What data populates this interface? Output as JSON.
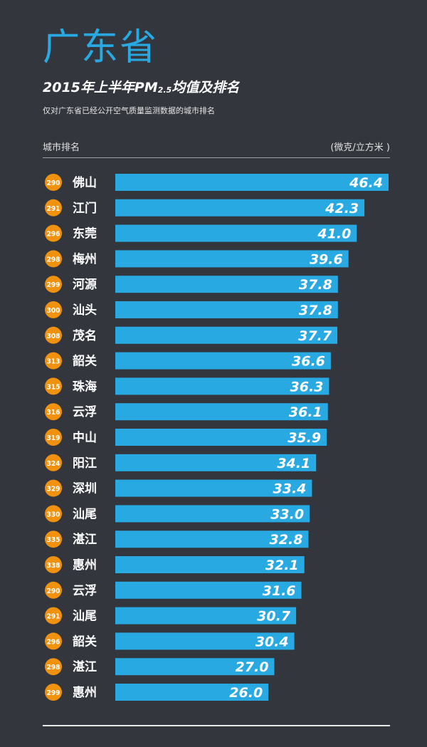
{
  "header": {
    "province": "广东省",
    "title_prefix": "2015年上半年PM",
    "title_sub": "2.5",
    "title_suffix": "均值及排名",
    "subtitle": "仅对广东省已经公开空气质量监测数据的城市排名",
    "column_left": "城市排名",
    "column_right": "(微克/立方米 )"
  },
  "colors": {
    "background": "#33363d",
    "bar": "#29a9e1",
    "badge": "#f0920e",
    "province": "#29a9e1"
  },
  "chart_data": {
    "type": "bar",
    "orientation": "horizontal",
    "categories": [
      "佛山",
      "江门",
      "东莞",
      "梅州",
      "河源",
      "汕头",
      "茂名",
      "韶关",
      "珠海",
      "云浮",
      "中山",
      "阳江",
      "深圳",
      "汕尾",
      "湛江",
      "惠州",
      "云浮",
      "汕尾",
      "韶关",
      "湛江",
      "惠州"
    ],
    "ranks": [
      "290",
      "291",
      "296",
      "298",
      "299",
      "300",
      "308",
      "313",
      "315",
      "316",
      "319",
      "324",
      "329",
      "330",
      "335",
      "338",
      "290",
      "291",
      "296",
      "298",
      "299"
    ],
    "values": [
      46.4,
      42.3,
      41.0,
      39.6,
      37.8,
      37.8,
      37.7,
      36.6,
      36.3,
      36.1,
      35.9,
      34.1,
      33.4,
      33.0,
      32.8,
      32.1,
      31.6,
      30.7,
      30.4,
      27.0,
      26.0
    ],
    "value_labels": [
      "46.4",
      "42.3",
      "41.0",
      "39.6",
      "37.8",
      "37.8",
      "37.7",
      "36.6",
      "36.3",
      "36.1",
      "35.9",
      "34.1",
      "33.4",
      "33.0",
      "32.8",
      "32.1",
      "31.6",
      "30.7",
      "30.4",
      "27.0",
      "26.0"
    ],
    "xlim": [
      0,
      46.4
    ],
    "unit": "(微克/立方米 )",
    "grid": false,
    "legend": "none"
  }
}
